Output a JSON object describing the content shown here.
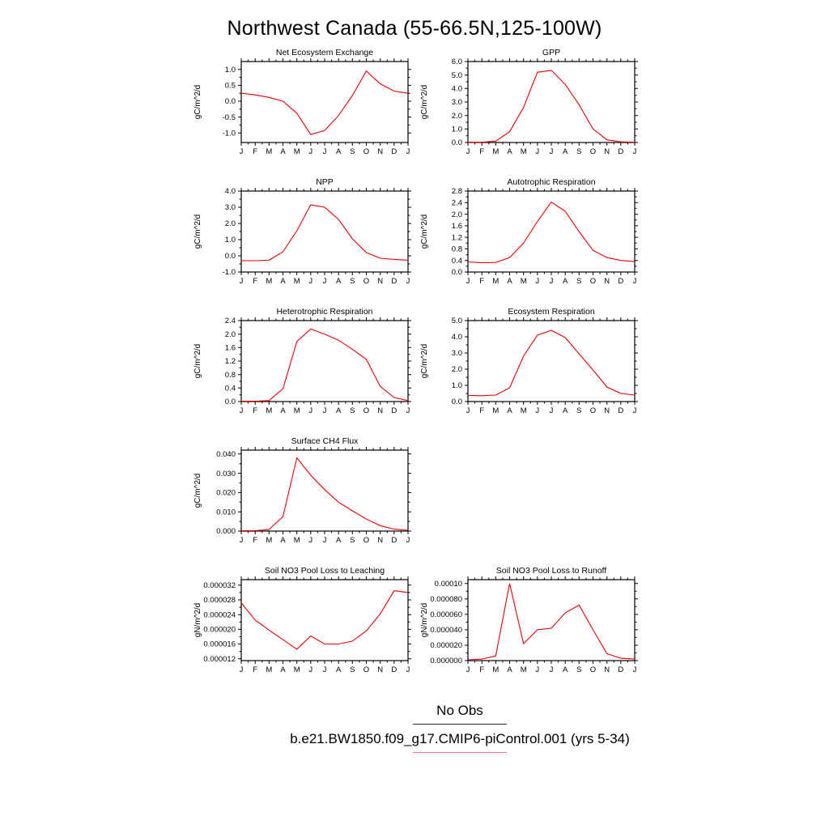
{
  "title": "Northwest Canada (55-66.5N,125-100W)",
  "months": [
    "J",
    "F",
    "M",
    "A",
    "M",
    "J",
    "J",
    "A",
    "S",
    "O",
    "N",
    "D",
    "J"
  ],
  "colors": {
    "line": "#e60000",
    "axis": "#000000",
    "legend_obs_line": "#2b2b3a",
    "legend_case_line": "#f08080"
  },
  "legend": {
    "no_obs_label": "No Obs",
    "case_label": "b.e21.BW1850.f09_g17.CMIP6-piControl.001 (yrs 5-34)"
  },
  "chart_data": [
    {
      "type": "line",
      "title": "Net Ecosystem Exchange",
      "ylabel": "gC/m^2/d",
      "ylim": [
        -1.3,
        1.25
      ],
      "yticks": [
        -1.0,
        -0.5,
        0.0,
        0.5,
        1.0
      ],
      "ytick_labels": [
        "-1.0",
        "-0.5",
        "0.0",
        "0.5",
        "1.0"
      ],
      "values": [
        0.25,
        0.2,
        0.12,
        0.0,
        -0.38,
        -1.05,
        -0.92,
        -0.45,
        0.18,
        0.95,
        0.55,
        0.32,
        0.25
      ]
    },
    {
      "type": "line",
      "title": "GPP",
      "ylabel": "gC/m^2/d",
      "ylim": [
        0.0,
        6.0
      ],
      "yticks": [
        0.0,
        1.0,
        2.0,
        3.0,
        4.0,
        5.0,
        6.0
      ],
      "ytick_labels": [
        "0.0",
        "1.0",
        "2.0",
        "3.0",
        "4.0",
        "5.0",
        "6.0"
      ],
      "values": [
        0.02,
        0.02,
        0.1,
        0.8,
        2.6,
        5.2,
        5.35,
        4.3,
        2.8,
        1.0,
        0.2,
        0.05,
        0.02
      ]
    },
    {
      "type": "line",
      "title": "NPP",
      "ylabel": "gC/m^2/d",
      "ylim": [
        -1.0,
        4.0
      ],
      "yticks": [
        -1.0,
        0.0,
        1.0,
        2.0,
        3.0,
        4.0
      ],
      "ytick_labels": [
        "-1.0",
        "0.0",
        "1.0",
        "2.0",
        "3.0",
        "4.0"
      ],
      "values": [
        -0.3,
        -0.3,
        -0.27,
        0.25,
        1.55,
        3.15,
        3.0,
        2.25,
        1.05,
        0.2,
        -0.15,
        -0.22,
        -0.27
      ]
    },
    {
      "type": "line",
      "title": "Autotrophic Respiration",
      "ylabel": "gC/m^2/d",
      "ylim": [
        0.0,
        2.8
      ],
      "yticks": [
        0.0,
        0.4,
        0.8,
        1.2,
        1.6,
        2.0,
        2.4,
        2.8
      ],
      "ytick_labels": [
        "0.0",
        "0.4",
        "0.8",
        "1.2",
        "1.6",
        "2.0",
        "2.4",
        "2.8"
      ],
      "values": [
        0.35,
        0.32,
        0.33,
        0.5,
        1.0,
        1.75,
        2.42,
        2.1,
        1.4,
        0.75,
        0.5,
        0.4,
        0.36
      ]
    },
    {
      "type": "line",
      "title": "Heterotrophic Respiration",
      "ylabel": "gC/m^2/d",
      "ylim": [
        0.0,
        2.4
      ],
      "yticks": [
        0.0,
        0.4,
        0.8,
        1.2,
        1.6,
        2.0,
        2.4
      ],
      "ytick_labels": [
        "0.0",
        "0.4",
        "0.8",
        "1.2",
        "1.6",
        "2.0",
        "2.4"
      ],
      "values": [
        0.01,
        0.01,
        0.03,
        0.38,
        1.78,
        2.15,
        2.0,
        1.82,
        1.55,
        1.25,
        0.45,
        0.12,
        0.03
      ]
    },
    {
      "type": "line",
      "title": "Ecosystem Respiration",
      "ylabel": "gC/m^2/d",
      "ylim": [
        0.0,
        5.0
      ],
      "yticks": [
        0.0,
        1.0,
        2.0,
        3.0,
        4.0,
        5.0
      ],
      "ytick_labels": [
        "0.0",
        "1.0",
        "2.0",
        "3.0",
        "4.0",
        "5.0"
      ],
      "values": [
        0.38,
        0.36,
        0.4,
        0.85,
        2.8,
        4.1,
        4.4,
        3.95,
        2.95,
        1.95,
        0.9,
        0.5,
        0.4
      ]
    },
    {
      "type": "line",
      "title": "Surface CH4 Flux",
      "ylabel": "gC/m^2/d",
      "ylim": [
        0.0,
        0.042
      ],
      "yticks": [
        0.0,
        0.01,
        0.02,
        0.03,
        0.04
      ],
      "ytick_labels": [
        "0.000",
        "0.010",
        "0.020",
        "0.030",
        "0.040"
      ],
      "values": [
        0.0002,
        0.0002,
        0.0008,
        0.0075,
        0.038,
        0.029,
        0.0215,
        0.015,
        0.0105,
        0.0062,
        0.0028,
        0.001,
        0.0004
      ]
    },
    {
      "type": "line",
      "title": "Soil NO3 Pool Loss to Leaching",
      "ylabel": "gN/m^2/d",
      "ylim": [
        1.15e-05,
        3.35e-05
      ],
      "yticks": [
        1.2e-05,
        1.6e-05,
        2e-05,
        2.4e-05,
        2.8e-05,
        3.2e-05
      ],
      "ytick_labels": [
        "0.000012",
        "0.000016",
        "0.000020",
        "0.000024",
        "0.000028",
        "0.000032"
      ],
      "values": [
        2.72e-05,
        2.25e-05,
        1.98e-05,
        1.72e-05,
        1.46e-05,
        1.82e-05,
        1.6e-05,
        1.6e-05,
        1.68e-05,
        1.96e-05,
        2.42e-05,
        3.05e-05,
        3e-05
      ]
    },
    {
      "type": "line",
      "title": "Soil NO3 Pool Loss to Runoff",
      "ylabel": "gN/m^2/d",
      "ylim": [
        0.0,
        0.000105
      ],
      "yticks": [
        0.0,
        2e-05,
        4e-05,
        6e-05,
        8e-05,
        0.0001
      ],
      "ytick_labels": [
        "0.000000",
        "0.000020",
        "0.000040",
        "0.000060",
        "0.000080",
        "0.00010"
      ],
      "values": [
        1e-06,
        2e-06,
        6e-06,
        0.0001,
        2.2e-05,
        4e-05,
        4.2e-05,
        6.2e-05,
        7.2e-05,
        4e-05,
        9e-06,
        3e-06,
        2e-06
      ]
    }
  ]
}
